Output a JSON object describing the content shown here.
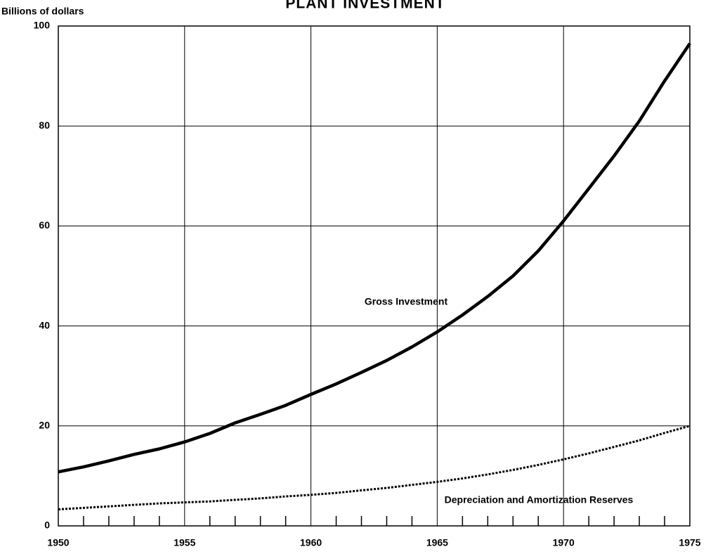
{
  "chart_data": {
    "type": "line",
    "title": "PLANT INVESTMENT",
    "ylabel": "Billions of dollars",
    "x": [
      1950,
      1951,
      1952,
      1953,
      1954,
      1955,
      1956,
      1957,
      1958,
      1959,
      1960,
      1961,
      1962,
      1963,
      1964,
      1965,
      1966,
      1967,
      1968,
      1969,
      1970,
      1971,
      1972,
      1973,
      1974,
      1975
    ],
    "series": [
      {
        "name": "Gross Investment",
        "color": "#000000",
        "dash": "solid",
        "values": [
          10.8,
          11.8,
          13.0,
          14.3,
          15.4,
          16.8,
          18.5,
          20.6,
          22.3,
          24.1,
          26.3,
          28.4,
          30.7,
          33.1,
          35.8,
          38.8,
          42.2,
          45.9,
          50.0,
          55.0,
          61.0,
          67.5,
          74.0,
          81.0,
          89.0,
          96.5
        ]
      },
      {
        "name": "Depreciation and Amortization Reserves",
        "color": "#000000",
        "dash": "dotted",
        "values": [
          3.3,
          3.6,
          3.9,
          4.2,
          4.5,
          4.7,
          4.9,
          5.2,
          5.5,
          5.9,
          6.2,
          6.6,
          7.1,
          7.6,
          8.2,
          8.8,
          9.5,
          10.3,
          11.2,
          12.2,
          13.3,
          14.5,
          15.8,
          17.1,
          18.6,
          20.0
        ]
      }
    ],
    "xlim": [
      1950,
      1975
    ],
    "xticks": [
      1950,
      1955,
      1960,
      1965,
      1970,
      1975
    ],
    "xminorticks": [
      1951,
      1952,
      1953,
      1954,
      1956,
      1957,
      1958,
      1959,
      1961,
      1962,
      1963,
      1964,
      1966,
      1967,
      1968,
      1969,
      1971,
      1972,
      1973,
      1974
    ],
    "ylim": [
      0,
      100
    ],
    "yticks": [
      0,
      20,
      40,
      60,
      80,
      100
    ],
    "grid": true
  }
}
